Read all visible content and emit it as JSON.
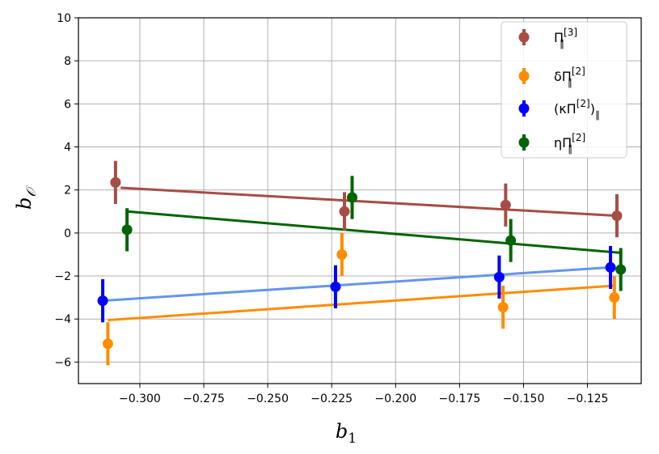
{
  "chart_data": {
    "type": "scatter",
    "xlabel": "b",
    "xlabel_sub": "1",
    "ylabel": "b",
    "ylabel_sub": "𝒪",
    "xlim": [
      -0.324,
      -0.104
    ],
    "ylim": [
      -7,
      10
    ],
    "xticks": [
      -0.3,
      -0.275,
      -0.25,
      -0.225,
      -0.2,
      -0.175,
      -0.15,
      -0.125
    ],
    "xtick_labels": [
      "−0.300",
      "−0.275",
      "−0.250",
      "−0.225",
      "−0.200",
      "−0.175",
      "−0.150",
      "−0.125"
    ],
    "yticks": [
      -6,
      -4,
      -2,
      0,
      2,
      4,
      6,
      8,
      10
    ],
    "ytick_labels": [
      "−6",
      "−4",
      "−2",
      "0",
      "2",
      "4",
      "6",
      "8",
      "10"
    ],
    "grid": true,
    "legend_position": "top-right",
    "series": [
      {
        "name_main": "Π",
        "name_sup": "[3]",
        "name_sub": "∥",
        "color": "#a64d45",
        "points": [
          {
            "x": -0.3095,
            "y": 2.35,
            "err": 1.0
          },
          {
            "x": -0.22,
            "y": 1.0,
            "err": 0.9
          },
          {
            "x": -0.157,
            "y": 1.3,
            "err": 1.0
          },
          {
            "x": -0.1135,
            "y": 0.8,
            "err": 1.0
          }
        ],
        "fit": {
          "x": [
            -0.3075,
            -0.1135
          ],
          "y": [
            2.1,
            0.8
          ],
          "color": "#a64d45"
        }
      },
      {
        "name_main": "δΠ",
        "name_sup": "[2]",
        "name_sub": "∥",
        "color": "#ff8c00",
        "points": [
          {
            "x": -0.3125,
            "y": -5.15,
            "err": 1.0
          },
          {
            "x": -0.221,
            "y": -1.0,
            "err": 1.0
          },
          {
            "x": -0.158,
            "y": -3.45,
            "err": 1.0
          },
          {
            "x": -0.1145,
            "y": -3.0,
            "err": 1.0
          }
        ],
        "fit": {
          "x": [
            -0.3125,
            -0.1145
          ],
          "y": [
            -4.05,
            -2.45
          ],
          "color": "#ff8c00"
        }
      },
      {
        "name_main": "(κΠ",
        "name_sup": "[2]",
        "name_close": ")",
        "name_sub": "∥",
        "color": "#0000ff",
        "points": [
          {
            "x": -0.3145,
            "y": -3.15,
            "err": 1.0
          },
          {
            "x": -0.2235,
            "y": -2.5,
            "err": 1.0
          },
          {
            "x": -0.1595,
            "y": -2.05,
            "err": 1.0
          },
          {
            "x": -0.116,
            "y": -1.6,
            "err": 1.0
          }
        ],
        "fit": {
          "x": [
            -0.3145,
            -0.116
          ],
          "y": [
            -3.15,
            -1.6
          ],
          "color": "#6495ed"
        }
      },
      {
        "name_main": "ηΠ",
        "name_sup": "[2]",
        "name_sub": "∥",
        "color": "#006400",
        "points": [
          {
            "x": -0.305,
            "y": 0.15,
            "err": 1.0
          },
          {
            "x": -0.217,
            "y": 1.65,
            "err": 1.0
          },
          {
            "x": -0.155,
            "y": -0.35,
            "err": 1.0
          },
          {
            "x": -0.112,
            "y": -1.7,
            "err": 1.0
          }
        ],
        "fit": {
          "x": [
            -0.305,
            -0.112
          ],
          "y": [
            1.0,
            -0.92
          ],
          "color": "#006400"
        }
      }
    ]
  }
}
